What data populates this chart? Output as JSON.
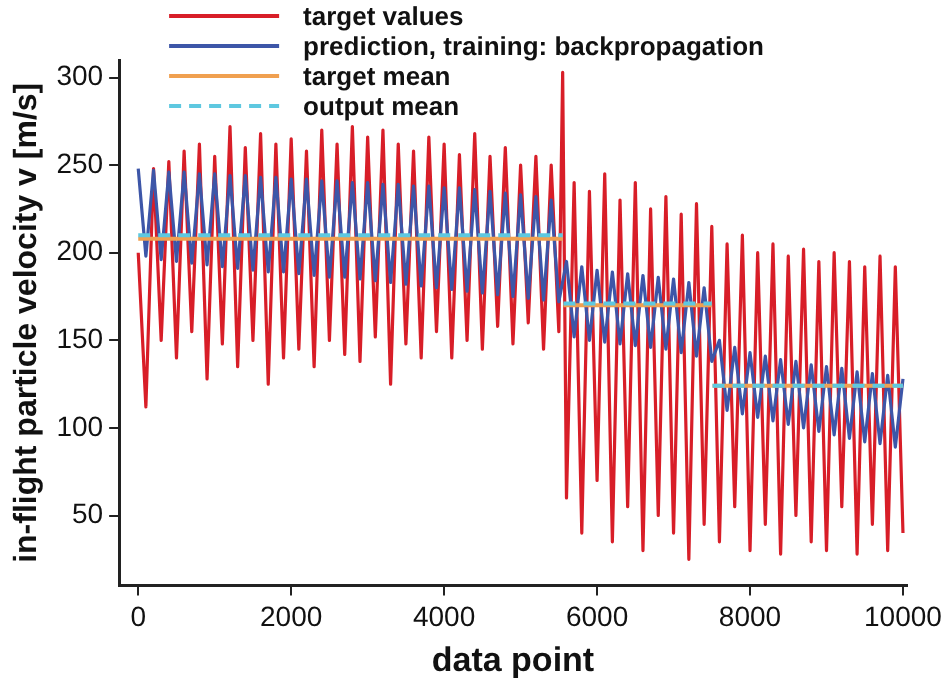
{
  "chart_data": {
    "type": "line",
    "xlabel": "data point",
    "ylabel": "in-flight particle velocity v [m/s]",
    "xlim": [
      -250,
      10050
    ],
    "xticks": [
      0,
      2000,
      4000,
      6000,
      8000,
      10000
    ],
    "ylim": [
      10,
      310
    ],
    "yticks": [
      50,
      100,
      150,
      200,
      250,
      300
    ],
    "grid": false,
    "legend": "top left",
    "marker": "none",
    "series": [
      {
        "name": "target values",
        "color": "#d81e28",
        "x": [
          0,
          100,
          200,
          300,
          400,
          500,
          600,
          700,
          800,
          900,
          1000,
          1100,
          1200,
          1300,
          1400,
          1500,
          1600,
          1700,
          1800,
          1900,
          2000,
          2100,
          2200,
          2300,
          2400,
          2500,
          2600,
          2700,
          2800,
          2900,
          3000,
          3100,
          3200,
          3300,
          3400,
          3500,
          3600,
          3700,
          3800,
          3900,
          4000,
          4100,
          4200,
          4300,
          4400,
          4500,
          4600,
          4700,
          4800,
          4900,
          5000,
          5100,
          5200,
          5300,
          5400,
          5500,
          5550,
          5600,
          5700,
          5800,
          5900,
          6000,
          6100,
          6200,
          6300,
          6400,
          6500,
          6600,
          6700,
          6800,
          6900,
          7000,
          7100,
          7200,
          7300,
          7400,
          7500,
          7600,
          7700,
          7800,
          7900,
          8000,
          8100,
          8200,
          8300,
          8400,
          8500,
          8600,
          8700,
          8800,
          8900,
          9000,
          9100,
          9200,
          9300,
          9400,
          9500,
          9600,
          9700,
          9800,
          9900,
          10000
        ],
        "values": [
          200,
          112,
          248,
          150,
          252,
          140,
          258,
          155,
          262,
          128,
          255,
          148,
          272,
          135,
          260,
          150,
          268,
          125,
          262,
          140,
          265,
          145,
          258,
          135,
          270,
          150,
          262,
          142,
          272,
          138,
          266,
          152,
          270,
          125,
          262,
          148,
          258,
          140,
          266,
          155,
          262,
          140,
          256,
          150,
          268,
          145,
          255,
          158,
          260,
          148,
          250,
          160,
          255,
          145,
          250,
          155,
          303,
          60,
          240,
          40,
          235,
          70,
          245,
          35,
          230,
          55,
          240,
          30,
          225,
          50,
          232,
          40,
          222,
          25,
          228,
          45,
          215,
          35,
          205,
          55,
          210,
          30,
          200,
          45,
          205,
          28,
          198,
          50,
          202,
          35,
          195,
          30,
          200,
          55,
          195,
          28,
          192,
          45,
          198,
          30,
          192,
          40
        ]
      },
      {
        "name": "prediction, training: backpropagation",
        "color": "#3d56a8",
        "x": [
          0,
          100,
          200,
          300,
          400,
          500,
          600,
          700,
          800,
          900,
          1000,
          1100,
          1200,
          1300,
          1400,
          1500,
          1600,
          1700,
          1800,
          1900,
          2000,
          2100,
          2200,
          2300,
          2400,
          2500,
          2600,
          2700,
          2800,
          2900,
          3000,
          3100,
          3200,
          3300,
          3400,
          3500,
          3600,
          3700,
          3800,
          3900,
          4000,
          4100,
          4200,
          4300,
          4400,
          4500,
          4600,
          4700,
          4800,
          4900,
          5000,
          5100,
          5200,
          5300,
          5400,
          5500,
          5600,
          5700,
          5800,
          5900,
          6000,
          6100,
          6200,
          6300,
          6400,
          6500,
          6600,
          6700,
          6800,
          6900,
          7000,
          7100,
          7200,
          7300,
          7400,
          7500,
          7600,
          7700,
          7800,
          7900,
          8000,
          8100,
          8200,
          8300,
          8400,
          8500,
          8600,
          8700,
          8800,
          8900,
          9000,
          9100,
          9200,
          9300,
          9400,
          9500,
          9600,
          9700,
          9800,
          9900,
          10000
        ],
        "values": [
          248,
          198,
          247,
          196,
          246,
          195,
          246,
          194,
          245,
          193,
          245,
          192,
          244,
          191,
          244,
          190,
          243,
          189,
          243,
          189,
          242,
          188,
          242,
          187,
          241,
          186,
          241,
          186,
          240,
          185,
          240,
          184,
          239,
          183,
          239,
          182,
          238,
          181,
          238,
          180,
          237,
          179,
          237,
          178,
          236,
          177,
          235,
          176,
          234,
          175,
          233,
          174,
          232,
          173,
          230,
          172,
          195,
          152,
          192,
          150,
          190,
          149,
          189,
          148,
          188,
          147,
          187,
          146,
          186,
          145,
          185,
          143,
          183,
          141,
          180,
          138,
          150,
          110,
          146,
          108,
          143,
          106,
          141,
          104,
          139,
          102,
          138,
          100,
          136,
          98,
          135,
          96,
          134,
          94,
          132,
          92,
          131,
          91,
          130,
          89,
          128
        ]
      },
      {
        "name": "target mean",
        "color": "#f0a050",
        "x": [
          0,
          5550,
          5555,
          5560,
          7500,
          7505,
          7510,
          10000
        ],
        "values": [
          208,
          208,
          null,
          170,
          170,
          null,
          124,
          124
        ]
      },
      {
        "name": "output mean",
        "color": "#5ec8e0",
        "line_style": "dashed",
        "x": [
          0,
          5550,
          5555,
          5560,
          7500,
          7505,
          7510,
          10000
        ],
        "values": [
          210,
          210,
          null,
          171,
          171,
          null,
          124,
          124
        ]
      }
    ]
  }
}
